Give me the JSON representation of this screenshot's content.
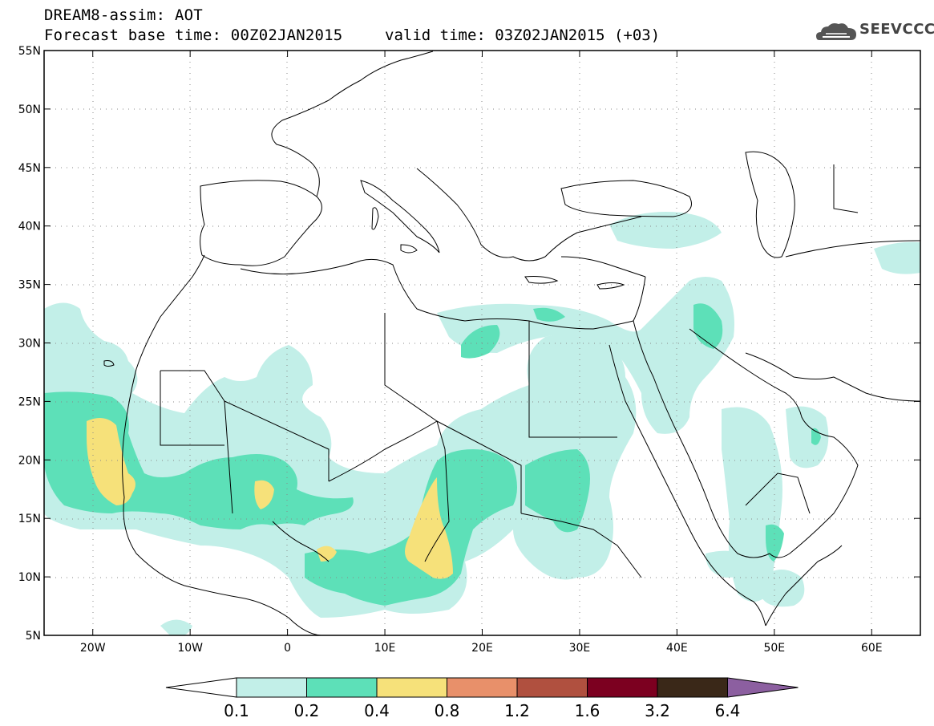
{
  "header": {
    "title_line1": "DREAM8-assim: AOT",
    "title_line2": "Forecast base time: 00Z02JAN2015",
    "valid_time": "valid time: 03Z02JAN2015 (+03)",
    "logo_text": "SEEVCCC"
  },
  "map": {
    "lat_labels": [
      "55N",
      "50N",
      "45N",
      "40N",
      "35N",
      "30N",
      "25N",
      "20N",
      "15N",
      "10N",
      "5N"
    ],
    "lat_values": [
      55,
      50,
      45,
      40,
      35,
      30,
      25,
      20,
      15,
      10,
      5
    ],
    "lon_labels": [
      "20W",
      "10W",
      "0",
      "10E",
      "20E",
      "30E",
      "40E",
      "50E",
      "60E"
    ],
    "lon_values": [
      -20,
      -10,
      0,
      10,
      20,
      30,
      40,
      50,
      60
    ],
    "lon_range": [
      -25,
      65
    ],
    "lat_range": [
      5,
      55
    ]
  },
  "legend": {
    "labels": [
      "0.1",
      "0.2",
      "0.4",
      "0.8",
      "1.2",
      "1.6",
      "3.2",
      "6.4"
    ],
    "colors": [
      "#c2efe8",
      "#5de0b8",
      "#f6e17a",
      "#e8906a",
      "#b0503f",
      "#7c0020",
      "#3a2818",
      "#8c5fa0"
    ],
    "under_color": "#ffffff"
  }
}
